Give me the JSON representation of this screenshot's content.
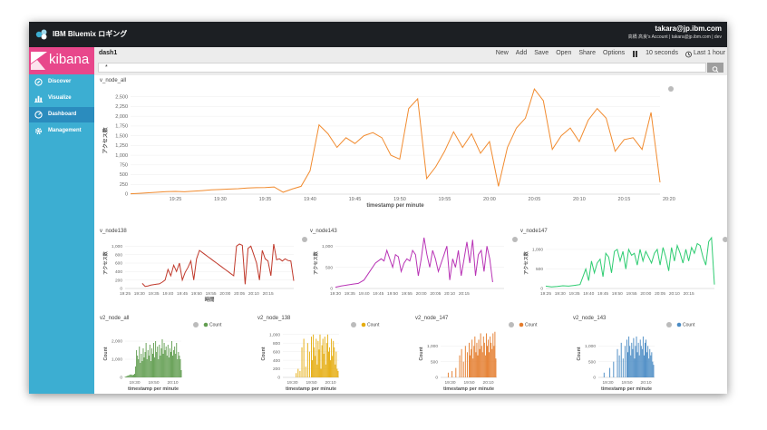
{
  "app": {
    "brand": "IBM Bluemix ロギング",
    "user_email": "takara@jp.ibm.com",
    "user_sub": "高橋 高良's Account | takara@jp.ibm.com | dev",
    "colors": {
      "topbar": "#1c1f23",
      "sidebar": "#3caed2",
      "sidebar_active": "#2b8cbe",
      "logo": "#e8478b"
    }
  },
  "sidebar": {
    "logo_text": "kibana",
    "items": [
      {
        "label": "Discover",
        "icon": "compass-icon",
        "active": false
      },
      {
        "label": "Visualize",
        "icon": "bar-chart-icon",
        "active": false
      },
      {
        "label": "Dashboard",
        "icon": "dashboard-icon",
        "active": true
      },
      {
        "label": "Management",
        "icon": "gear-icon",
        "active": false
      }
    ]
  },
  "toolbar": {
    "dashboard_name": "dash1",
    "new": "New",
    "add": "Add",
    "save": "Save",
    "open": "Open",
    "share": "Share",
    "options": "Options",
    "refresh_interval": "10 seconds",
    "time_range": "Last 1 hour"
  },
  "search": {
    "value": "*"
  },
  "chart_data": [
    {
      "title": "v_node_all",
      "type": "line",
      "color": "#f18b2f",
      "ylabel": "アクセス数",
      "xlabel": "timestamp per minute",
      "ylim": [
        0,
        2750
      ],
      "yticks": [
        0,
        250,
        500,
        750,
        1000,
        1250,
        1500,
        1750,
        2000,
        2250,
        2500
      ],
      "xlim": [
        0,
        59
      ],
      "xticks": [
        {
          "x": 5,
          "label": "19:25"
        },
        {
          "x": 10,
          "label": "19:30"
        },
        {
          "x": 15,
          "label": "19:35"
        },
        {
          "x": 20,
          "label": "19:40"
        },
        {
          "x": 25,
          "label": "19:45"
        },
        {
          "x": 30,
          "label": "19:50"
        },
        {
          "x": 35,
          "label": "19:55"
        },
        {
          "x": 40,
          "label": "20:00"
        },
        {
          "x": 45,
          "label": "20:05"
        },
        {
          "x": 50,
          "label": "20:10"
        },
        {
          "x": 55,
          "label": "20:15"
        },
        {
          "x": 60,
          "label": "20:20"
        }
      ],
      "x": [
        0,
        1,
        2,
        3,
        4,
        5,
        6,
        7,
        8,
        9,
        10,
        11,
        12,
        13,
        14,
        15,
        16,
        17,
        18,
        19,
        20,
        21,
        22,
        23,
        24,
        25,
        26,
        27,
        28,
        29,
        30,
        31,
        32,
        33,
        34,
        35,
        36,
        37,
        38,
        39,
        40,
        41,
        42,
        43,
        44,
        45,
        46,
        47,
        48,
        49,
        50,
        51,
        52,
        53,
        54,
        55,
        56,
        57,
        58,
        59
      ],
      "values": [
        10,
        20,
        35,
        50,
        65,
        70,
        60,
        75,
        90,
        110,
        120,
        130,
        140,
        155,
        165,
        170,
        185,
        50,
        130,
        200,
        600,
        1780,
        1550,
        1200,
        1450,
        1300,
        1500,
        1580,
        1450,
        1000,
        900,
        2200,
        2450,
        400,
        700,
        1100,
        1600,
        1200,
        1550,
        1050,
        1350,
        200,
        1200,
        1700,
        1950,
        2700,
        2400,
        1150,
        1500,
        1700,
        1350,
        1900,
        2200,
        1950,
        1100,
        1400,
        1450,
        1150,
        2100,
        300
      ]
    },
    {
      "title": "v_node138",
      "type": "line",
      "color": "#c0392b",
      "ylabel": "アクセス数",
      "xlabel": "時間",
      "ylim": [
        0,
        1200
      ],
      "yticks": [
        0,
        200,
        400,
        600,
        800,
        1000
      ],
      "xlim": [
        0,
        59
      ],
      "xticks": [
        {
          "x": 0,
          "label": "19:25"
        },
        {
          "x": 5,
          "label": "19:30"
        },
        {
          "x": 10,
          "label": "19:35"
        },
        {
          "x": 15,
          "label": "19:40"
        },
        {
          "x": 20,
          "label": "19:45"
        },
        {
          "x": 25,
          "label": "19:50"
        },
        {
          "x": 30,
          "label": "19:55"
        },
        {
          "x": 35,
          "label": "20:00"
        },
        {
          "x": 40,
          "label": "20:05"
        },
        {
          "x": 45,
          "label": "20:10"
        },
        {
          "x": 50,
          "label": "20:15"
        }
      ],
      "x": [
        6,
        7,
        8,
        9,
        10,
        11,
        12,
        13,
        14,
        15,
        16,
        17,
        18,
        19,
        20,
        21,
        22,
        23,
        24,
        25,
        26,
        27,
        28,
        29,
        30,
        31,
        32,
        33,
        34,
        35,
        36,
        37,
        38,
        39,
        40,
        41,
        42,
        43,
        44,
        45,
        46,
        47,
        48,
        49,
        50,
        51,
        52,
        53,
        54,
        55,
        56,
        57,
        58,
        59
      ],
      "values": [
        120,
        50,
        60,
        80,
        90,
        100,
        110,
        150,
        200,
        450,
        300,
        550,
        400,
        600,
        200,
        380,
        500,
        650,
        200,
        700,
        900,
        850,
        800,
        750,
        700,
        650,
        600,
        550,
        500,
        450,
        400,
        350,
        300,
        1000,
        1050,
        1020,
        100,
        950,
        1000,
        800,
        600,
        200,
        900,
        700,
        650,
        300,
        1050,
        680,
        700,
        650,
        700,
        660,
        650,
        180
      ]
    },
    {
      "title": "v_node143",
      "type": "line",
      "color": "#b833b5",
      "ylabel": "アクセス数",
      "xlabel": "",
      "ylim": [
        0,
        1200
      ],
      "yticks": [
        0,
        500,
        1000
      ],
      "xlim": [
        0,
        59
      ],
      "xticks": [
        {
          "x": 0,
          "label": "19:30"
        },
        {
          "x": 5,
          "label": "19:35"
        },
        {
          "x": 10,
          "label": "19:40"
        },
        {
          "x": 15,
          "label": "19:45"
        },
        {
          "x": 20,
          "label": "19:50"
        },
        {
          "x": 25,
          "label": "19:55"
        },
        {
          "x": 30,
          "label": "20:00"
        },
        {
          "x": 35,
          "label": "20:05"
        },
        {
          "x": 40,
          "label": "20:10"
        },
        {
          "x": 45,
          "label": "20:15"
        }
      ],
      "x": [
        0,
        2,
        4,
        6,
        8,
        10,
        12,
        14,
        16,
        17,
        18,
        19,
        20,
        21,
        22,
        23,
        24,
        25,
        26,
        27,
        28,
        29,
        30,
        31,
        32,
        33,
        34,
        35,
        36,
        37,
        38,
        39,
        40,
        41,
        42,
        43,
        44,
        45,
        46,
        47,
        48,
        49,
        50,
        51,
        52,
        53,
        54,
        55
      ],
      "values": [
        30,
        60,
        80,
        100,
        120,
        200,
        400,
        600,
        700,
        650,
        900,
        700,
        500,
        800,
        750,
        400,
        600,
        700,
        650,
        900,
        800,
        300,
        700,
        1200,
        800,
        500,
        900,
        700,
        400,
        600,
        800,
        1000,
        200,
        700,
        500,
        900,
        300,
        700,
        1100,
        600,
        1150,
        300,
        800,
        900,
        400,
        1000,
        700,
        150
      ]
    },
    {
      "title": "v_node147",
      "type": "line",
      "color": "#2ecc71",
      "ylabel": "アクセス数",
      "xlabel": "",
      "ylim": [
        0,
        1300
      ],
      "yticks": [
        0,
        500,
        1000
      ],
      "xlim": [
        0,
        59
      ],
      "xticks": [
        {
          "x": 0,
          "label": "19:25"
        },
        {
          "x": 5,
          "label": "19:30"
        },
        {
          "x": 10,
          "label": "19:35"
        },
        {
          "x": 15,
          "label": "19:40"
        },
        {
          "x": 20,
          "label": "19:45"
        },
        {
          "x": 25,
          "label": "19:50"
        },
        {
          "x": 30,
          "label": "19:55"
        },
        {
          "x": 35,
          "label": "20:00"
        },
        {
          "x": 40,
          "label": "20:05"
        },
        {
          "x": 45,
          "label": "20:10"
        },
        {
          "x": 50,
          "label": "20:15"
        }
      ],
      "x": [
        0,
        2,
        4,
        6,
        8,
        10,
        12,
        13,
        14,
        15,
        16,
        17,
        18,
        19,
        20,
        21,
        22,
        23,
        24,
        25,
        26,
        27,
        28,
        29,
        30,
        31,
        32,
        33,
        34,
        35,
        36,
        37,
        38,
        39,
        40,
        41,
        42,
        43,
        44,
        45,
        46,
        47,
        48,
        49,
        50,
        51,
        52,
        53,
        54,
        55,
        56,
        57,
        58,
        59
      ],
      "values": [
        60,
        40,
        50,
        70,
        60,
        80,
        100,
        300,
        500,
        200,
        700,
        400,
        650,
        750,
        300,
        900,
        800,
        400,
        950,
        1000,
        700,
        950,
        500,
        1000,
        850,
        900,
        600,
        1000,
        700,
        950,
        800,
        650,
        900,
        1000,
        600,
        1050,
        800,
        450,
        1050,
        700,
        1100,
        900,
        650,
        1000,
        700,
        1050,
        900,
        1150,
        1100,
        800,
        600,
        1200,
        1300,
        100
      ]
    },
    {
      "title": "v2_node_all",
      "type": "bar",
      "color": "#629e51",
      "legend": "Count",
      "ylabel": "Count",
      "xlabel": "timestamp per minute",
      "ylim": [
        0,
        2600
      ],
      "yticks": [
        0,
        1000,
        2000
      ],
      "xlim": [
        0,
        59
      ],
      "xticks": [
        {
          "x": 10,
          "label": "19:30"
        },
        {
          "x": 30,
          "label": "19:50"
        },
        {
          "x": 50,
          "label": "20:10"
        }
      ],
      "x": [
        0,
        1,
        2,
        3,
        4,
        5,
        6,
        7,
        8,
        9,
        10,
        11,
        12,
        13,
        14,
        15,
        16,
        17,
        18,
        19,
        20,
        21,
        22,
        23,
        24,
        25,
        26,
        27,
        28,
        29,
        30,
        31,
        32,
        33,
        34,
        35,
        36,
        37,
        38,
        39,
        40,
        41,
        42,
        43,
        44,
        45,
        46,
        47,
        48,
        49,
        50,
        51,
        52,
        53,
        54,
        55,
        56,
        57,
        58,
        59
      ],
      "values": [
        30,
        50,
        80,
        100,
        120,
        150,
        160,
        140,
        130,
        150,
        200,
        600,
        1500,
        1200,
        1000,
        1700,
        800,
        1300,
        900,
        1600,
        1100,
        1400,
        1900,
        1000,
        1500,
        1200,
        1800,
        900,
        1600,
        1300,
        1900,
        1100,
        2000,
        1400,
        1700,
        1000,
        1800,
        1200,
        1600,
        2100,
        1300,
        1900,
        1500,
        1700,
        1200,
        1800,
        1100,
        1600,
        1400,
        2000,
        1200,
        1500,
        1700,
        1300,
        1900,
        1000,
        1400,
        1200,
        1000,
        400
      ]
    },
    {
      "title": "v2_node_138",
      "type": "bar",
      "color": "#e5ac0e",
      "legend": "Count",
      "ylabel": "Count",
      "xlabel": "timestamp per minute",
      "ylim": [
        0,
        1100
      ],
      "yticks": [
        0,
        200,
        400,
        600,
        800,
        1000
      ],
      "xlim": [
        0,
        59
      ],
      "xticks": [
        {
          "x": 10,
          "label": "19:30"
        },
        {
          "x": 30,
          "label": "19:50"
        },
        {
          "x": 50,
          "label": "20:10"
        }
      ],
      "x": [
        14,
        16,
        18,
        20,
        22,
        24,
        26,
        28,
        30,
        31,
        32,
        33,
        34,
        35,
        36,
        37,
        38,
        39,
        40,
        41,
        42,
        43,
        44,
        45,
        46,
        47,
        48,
        49,
        50,
        51,
        52,
        53,
        54,
        55,
        56,
        57,
        58
      ],
      "values": [
        100,
        200,
        150,
        700,
        900,
        250,
        800,
        600,
        950,
        400,
        1000,
        700,
        500,
        900,
        300,
        850,
        650,
        1000,
        200,
        750,
        900,
        550,
        950,
        300,
        800,
        1000,
        600,
        700,
        400,
        900,
        500,
        850,
        700,
        300,
        600,
        200,
        150
      ]
    },
    {
      "title": "v2_node_147",
      "type": "bar",
      "color": "#e47c2c",
      "legend": "Count",
      "ylabel": "Count",
      "xlabel": "timestamp per minute",
      "ylim": [
        0,
        1500
      ],
      "yticks": [
        0,
        500,
        1000
      ],
      "xlim": [
        0,
        59
      ],
      "xticks": [
        {
          "x": 10,
          "label": "19:30"
        },
        {
          "x": 30,
          "label": "19:50"
        },
        {
          "x": 50,
          "label": "20:10"
        }
      ],
      "x": [
        8,
        12,
        16,
        20,
        22,
        24,
        26,
        28,
        30,
        31,
        32,
        33,
        34,
        35,
        36,
        37,
        38,
        39,
        40,
        41,
        42,
        43,
        44,
        45,
        46,
        47,
        48,
        49,
        50,
        51,
        52,
        53,
        54,
        55,
        56,
        57,
        58
      ],
      "values": [
        150,
        200,
        300,
        700,
        900,
        500,
        1000,
        800,
        1100,
        700,
        900,
        1200,
        600,
        1000,
        1300,
        800,
        1100,
        700,
        1200,
        900,
        1400,
        1000,
        800,
        1300,
        1100,
        700,
        1400,
        1000,
        1200,
        800,
        1300,
        1100,
        900,
        1400,
        1000,
        1450,
        600
      ]
    },
    {
      "title": "v2_node_143",
      "type": "bar",
      "color": "#4a8bc4",
      "legend": "Count",
      "ylabel": "Count",
      "xlabel": "timestamp per minute",
      "ylim": [
        0,
        1500
      ],
      "yticks": [
        0,
        500,
        1000
      ],
      "xlim": [
        0,
        59
      ],
      "xticks": [
        {
          "x": 10,
          "label": "19:30"
        },
        {
          "x": 30,
          "label": "19:50"
        },
        {
          "x": 50,
          "label": "20:10"
        }
      ],
      "x": [
        6,
        12,
        16,
        20,
        22,
        24,
        26,
        28,
        30,
        31,
        32,
        33,
        34,
        35,
        36,
        37,
        38,
        39,
        40,
        41,
        42,
        43,
        44,
        45,
        46,
        47,
        48,
        49,
        50,
        51,
        52,
        53,
        54,
        55,
        56,
        57,
        58
      ],
      "values": [
        150,
        300,
        500,
        900,
        700,
        1100,
        600,
        1000,
        1200,
        800,
        1300,
        1000,
        700,
        1100,
        900,
        1250,
        600,
        1000,
        1300,
        800,
        1100,
        700,
        1200,
        1000,
        900,
        1300,
        700,
        1100,
        1200,
        800,
        1000,
        600,
        900,
        700,
        800,
        500,
        400
      ]
    }
  ]
}
